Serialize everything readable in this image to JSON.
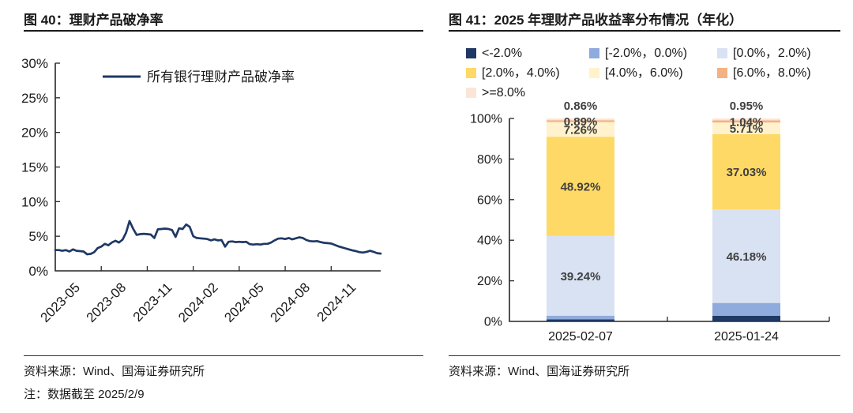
{
  "panels": [
    {
      "title": "图 40：理财产品破净率",
      "source": "资料来源：Wind、国海证券研究所",
      "note": "注：数据截至 2025/2/9"
    },
    {
      "title": "图 41：2025 年理财产品收益率分布情况（年化）",
      "source": "资料来源：Wind、国海证券研究所"
    }
  ],
  "colors": {
    "line": "#1F3864",
    "axis": "#262626",
    "bar_label": "#404040"
  },
  "chart_data": [
    {
      "type": "line",
      "title": "图 40：理财产品破净率",
      "legend_entries": [
        "所有银行理财产品破净率"
      ],
      "legend_position": "top-inside",
      "grid": false,
      "ylim": [
        0,
        30
      ],
      "y_ticks": [
        0,
        5,
        10,
        15,
        20,
        25,
        30
      ],
      "y_tick_suffix": "%",
      "x_tick_labels": [
        "2023-05",
        "2023-08",
        "2023-11",
        "2024-02",
        "2024-05",
        "2024-08",
        "2024-11"
      ],
      "x_tick_interval_points": 13,
      "series": [
        {
          "name": "所有银行理财产品破净率",
          "color": "#1F3864",
          "values": [
            3.0,
            3.0,
            2.9,
            3.0,
            2.8,
            3.1,
            2.9,
            2.85,
            2.8,
            2.4,
            2.45,
            2.7,
            3.3,
            3.5,
            3.9,
            3.7,
            4.1,
            4.35,
            4.1,
            4.5,
            5.5,
            7.2,
            6.1,
            5.2,
            5.3,
            5.35,
            5.3,
            5.25,
            4.75,
            6.0,
            6.05,
            6.1,
            6.05,
            5.9,
            4.9,
            6.15,
            6.05,
            6.7,
            6.35,
            5.0,
            4.75,
            4.7,
            4.65,
            4.6,
            4.4,
            4.55,
            4.4,
            4.45,
            3.5,
            4.2,
            4.25,
            4.15,
            4.2,
            4.15,
            4.2,
            3.85,
            3.8,
            3.85,
            3.8,
            3.9,
            3.9,
            4.1,
            4.4,
            4.65,
            4.7,
            4.6,
            4.75,
            4.55,
            4.7,
            4.85,
            4.75,
            4.45,
            4.3,
            4.25,
            4.3,
            4.15,
            4.05,
            4.0,
            3.95,
            3.75,
            3.55,
            3.4,
            3.25,
            3.1,
            2.95,
            2.85,
            2.7,
            2.65,
            2.75,
            2.9,
            2.75,
            2.55,
            2.5
          ]
        }
      ]
    },
    {
      "type": "bar",
      "subtype": "stacked",
      "title": "图 41：2025 年理财产品收益率分布情况（年化）",
      "categories": [
        "2025-02-07",
        "2025-01-24"
      ],
      "ylim": [
        0,
        100
      ],
      "y_ticks": [
        0,
        20,
        40,
        60,
        80,
        100
      ],
      "y_tick_suffix": "%",
      "legend_position": "top",
      "series": [
        {
          "name": "<-2.0%",
          "color": "#1F3864",
          "values": [
            1.0,
            2.8
          ],
          "labels": [
            "",
            ""
          ]
        },
        {
          "name": "[-2.0%，0.0%)",
          "color": "#8FAADC",
          "values": [
            1.83,
            6.29
          ],
          "labels": [
            "",
            ""
          ]
        },
        {
          "name": "[0.0%，2.0%)",
          "color": "#D9E2F3",
          "values": [
            39.24,
            46.18
          ],
          "labels": [
            "39.24%",
            "46.18%"
          ]
        },
        {
          "name": "[2.0%，4.0%)",
          "color": "#FFD966",
          "values": [
            48.92,
            37.03
          ],
          "labels": [
            "48.92%",
            "37.03%"
          ]
        },
        {
          "name": "[4.0%，6.0%)",
          "color": "#FFF2CC",
          "values": [
            7.26,
            5.71
          ],
          "labels": [
            "7.26%",
            "5.71%"
          ]
        },
        {
          "name": "[6.0%，8.0%)",
          "color": "#F4B183",
          "values": [
            0.89,
            1.04
          ],
          "labels": [
            "0.89%",
            "1.04%"
          ]
        },
        {
          "name": ">=8.0%",
          "color": "#FBE5D6",
          "values": [
            0.86,
            0.95
          ],
          "labels": [
            "0.86%",
            "0.95%"
          ]
        }
      ]
    }
  ]
}
